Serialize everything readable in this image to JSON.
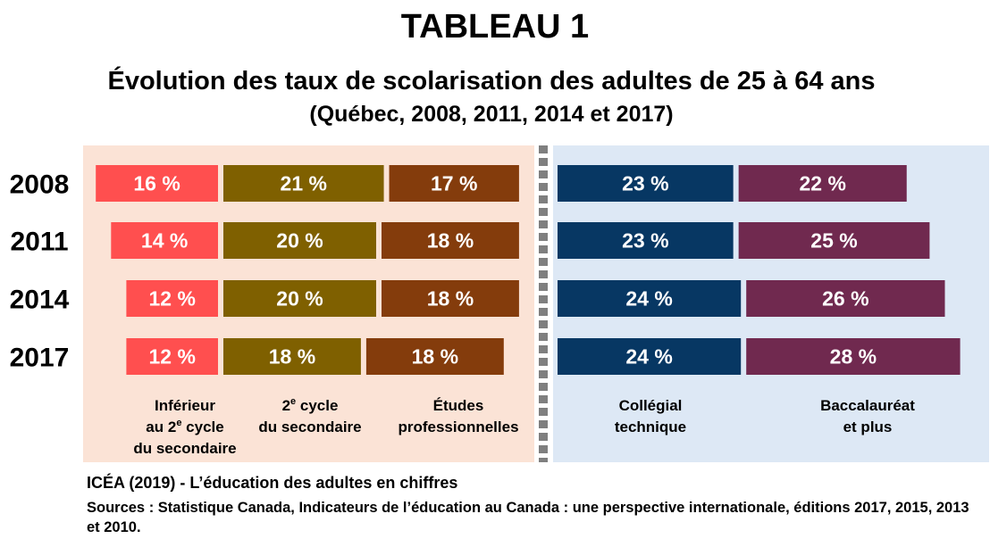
{
  "header": {
    "title": "TABLEAU 1",
    "subtitle": "Évolution des taux de scolarisation des adultes de 25 à 64 ans",
    "subtitle2": "(Québec, 2008, 2011, 2014 et 2017)"
  },
  "footer": {
    "source_line1": "ICÉA (2019) - L’éducation des adultes en chiffres",
    "source_line2": "Sources : Statistique Canada, Indicateurs de l’éducation au Canada : une perspective internationale, éditions 2017, 2015, 2013 et 2010."
  },
  "colors": {
    "left_panel": "#fbe3d6",
    "right_panel": "#dde8f5",
    "divider": "#7f7f7f"
  },
  "chart_data": {
    "type": "bar",
    "stacked": true,
    "orientation": "horizontal",
    "unit": "%",
    "categories": [
      "2008",
      "2011",
      "2014",
      "2017"
    ],
    "series": [
      {
        "name": [
          "Inférieur",
          "au 2|e| cycle",
          "du secondaire"
        ],
        "group": "left",
        "color": "#ff4f4f",
        "values": [
          16,
          14,
          12,
          12
        ],
        "labels": [
          "16 %",
          "14 %",
          "12 %",
          "12 %"
        ]
      },
      {
        "name": [
          "2|e| cycle",
          "du secondaire"
        ],
        "group": "left",
        "color": "#7f6000",
        "values": [
          21,
          20,
          20,
          18
        ],
        "labels": [
          "21 %",
          "20 %",
          "20 %",
          "18 %"
        ]
      },
      {
        "name": [
          "Études",
          "professionnelles"
        ],
        "group": "left",
        "color": "#843c0c",
        "values": [
          17,
          18,
          18,
          18
        ],
        "labels": [
          "17 %",
          "18 %",
          "18 %",
          "18 %"
        ]
      },
      {
        "name": [
          "Collégial",
          "technique"
        ],
        "group": "right",
        "color": "#073763",
        "values": [
          23,
          23,
          24,
          24
        ],
        "labels": [
          "23 %",
          "23 %",
          "24 %",
          "24 %"
        ]
      },
      {
        "name": [
          "Baccalauréat",
          "et plus"
        ],
        "group": "right",
        "color": "#70294f",
        "values": [
          22,
          25,
          26,
          28
        ],
        "labels": [
          "22 %",
          "25 %",
          "26 %",
          "28 %"
        ]
      }
    ]
  }
}
